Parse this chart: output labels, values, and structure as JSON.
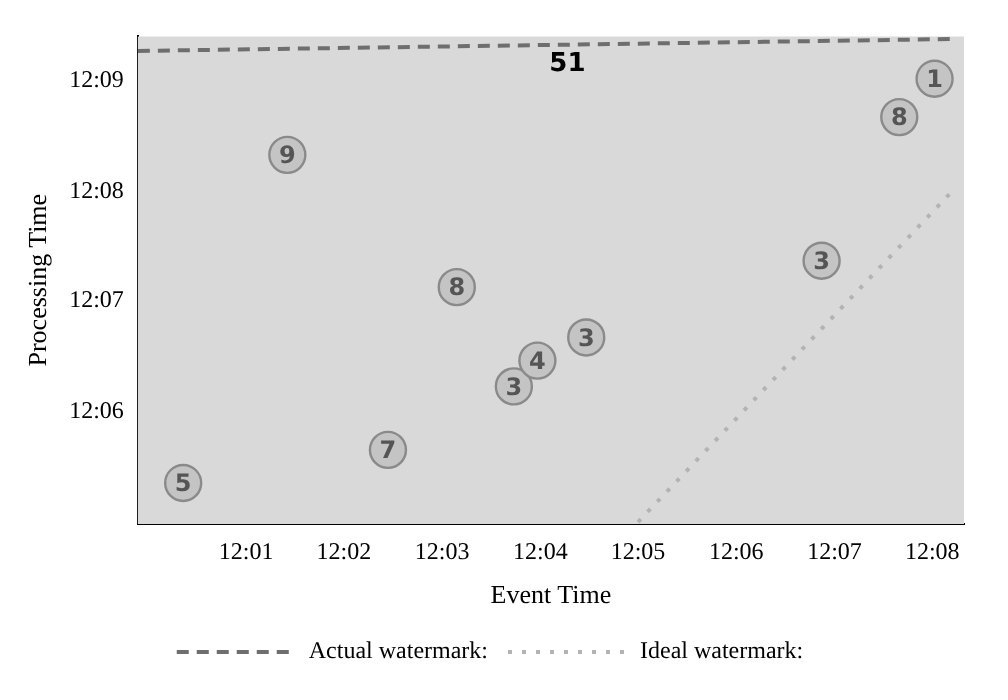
{
  "chart_data": {
    "type": "scatter",
    "xlabel": "Event Time",
    "ylabel": "Processing Time",
    "xlim": [
      11.9983,
      12.1387
    ],
    "ylim": [
      12.083,
      12.1567
    ],
    "xticks": [
      {
        "value": 12.0167,
        "label": "12:01"
      },
      {
        "value": 12.0333,
        "label": "12:02"
      },
      {
        "value": 12.05,
        "label": "12:03"
      },
      {
        "value": 12.0667,
        "label": "12:04"
      },
      {
        "value": 12.0833,
        "label": "12:05"
      },
      {
        "value": 12.1,
        "label": "12:06"
      },
      {
        "value": 12.1167,
        "label": "12:07"
      },
      {
        "value": 12.1333,
        "label": "12:08"
      }
    ],
    "yticks": [
      {
        "value": 12.1,
        "label": "12:06"
      },
      {
        "value": 12.1167,
        "label": "12:07"
      },
      {
        "value": 12.1333,
        "label": "12:08"
      },
      {
        "value": 12.15,
        "label": "12:09"
      }
    ],
    "grid": false,
    "legend": "bottom",
    "series": [
      {
        "color": "#c4c4c4",
        "marker": "circle",
        "x": [
          12.006,
          12.0237,
          12.0408,
          12.0525,
          12.0622,
          12.0662,
          12.0745,
          12.1145,
          12.1277,
          12.1337
        ],
        "values": [
          12.0892,
          12.1388,
          12.0942,
          12.1188,
          12.1038,
          12.1077,
          12.1112,
          12.1228,
          12.1445,
          12.1503
        ]
      },
      {
        "type": "line",
        "name": "Actual watermark:",
        "color": "#6e6e6e",
        "marker": "none",
        "line_style": "dashed",
        "x": [
          11.9983,
          12.1367
        ],
        "values": [
          12.1545,
          12.1563
        ]
      },
      {
        "type": "line",
        "name": "Ideal watermark:",
        "color": "#b3b3b3",
        "marker": "none",
        "line_style": "dotted",
        "x": [
          12.0833,
          12.1367
        ],
        "values": [
          12.0833,
          12.1333
        ]
      }
    ],
    "annotations": [
      "51",
      {
        "text": "5",
        "x": 12.006,
        "y": 12.0892
      },
      {
        "text": "9",
        "x": 12.0237,
        "y": 12.1388
      },
      {
        "text": "7",
        "x": 12.0408,
        "y": 12.0942
      },
      {
        "text": "8",
        "x": 12.0525,
        "y": 12.1188
      },
      {
        "text": "3",
        "x": 12.0622,
        "y": 12.1038
      },
      {
        "text": "4",
        "x": 12.0662,
        "y": 12.1077
      },
      {
        "text": "3",
        "x": 12.0745,
        "y": 12.1112
      },
      {
        "text": "3",
        "x": 12.1145,
        "y": 12.1228
      },
      {
        "text": "8",
        "x": 12.1277,
        "y": 12.1445
      },
      {
        "text": "1",
        "x": 12.1337,
        "y": 12.1503
      }
    ]
  }
}
